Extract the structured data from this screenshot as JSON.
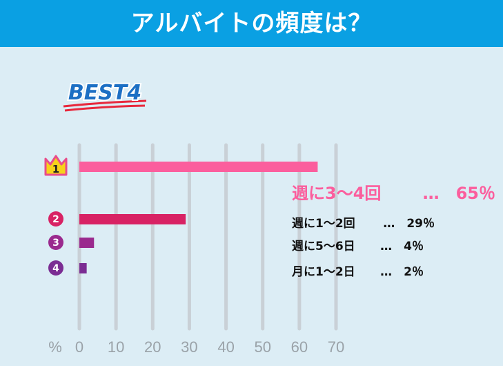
{
  "header": {
    "title": "アルバイトの頻度は？"
  },
  "badge": {
    "text": "BEST4"
  },
  "colors": {
    "header": "#0aa0e3",
    "background": "#dcedf5",
    "grid": "#c9d0d6"
  },
  "chart_data": {
    "type": "bar",
    "orientation": "horizontal",
    "xlabel": "%",
    "xlim": [
      0,
      70
    ],
    "xticks": [
      "0",
      "10",
      "20",
      "30",
      "40",
      "50",
      "60",
      "70"
    ],
    "grid": true,
    "categories": [
      "週に3〜4回",
      "週に1〜2回",
      "週に5〜6日",
      "月に1〜2日"
    ],
    "values": [
      65,
      29,
      4,
      2
    ],
    "ranks": [
      "1",
      "2",
      "3",
      "4"
    ],
    "value_labels": [
      "…　65％",
      "…　29％",
      "…　4％",
      "…　2％"
    ],
    "bar_colors": [
      "#fb5e9d",
      "#d82264",
      "#9a2a8e",
      "#7b2d93"
    ]
  }
}
